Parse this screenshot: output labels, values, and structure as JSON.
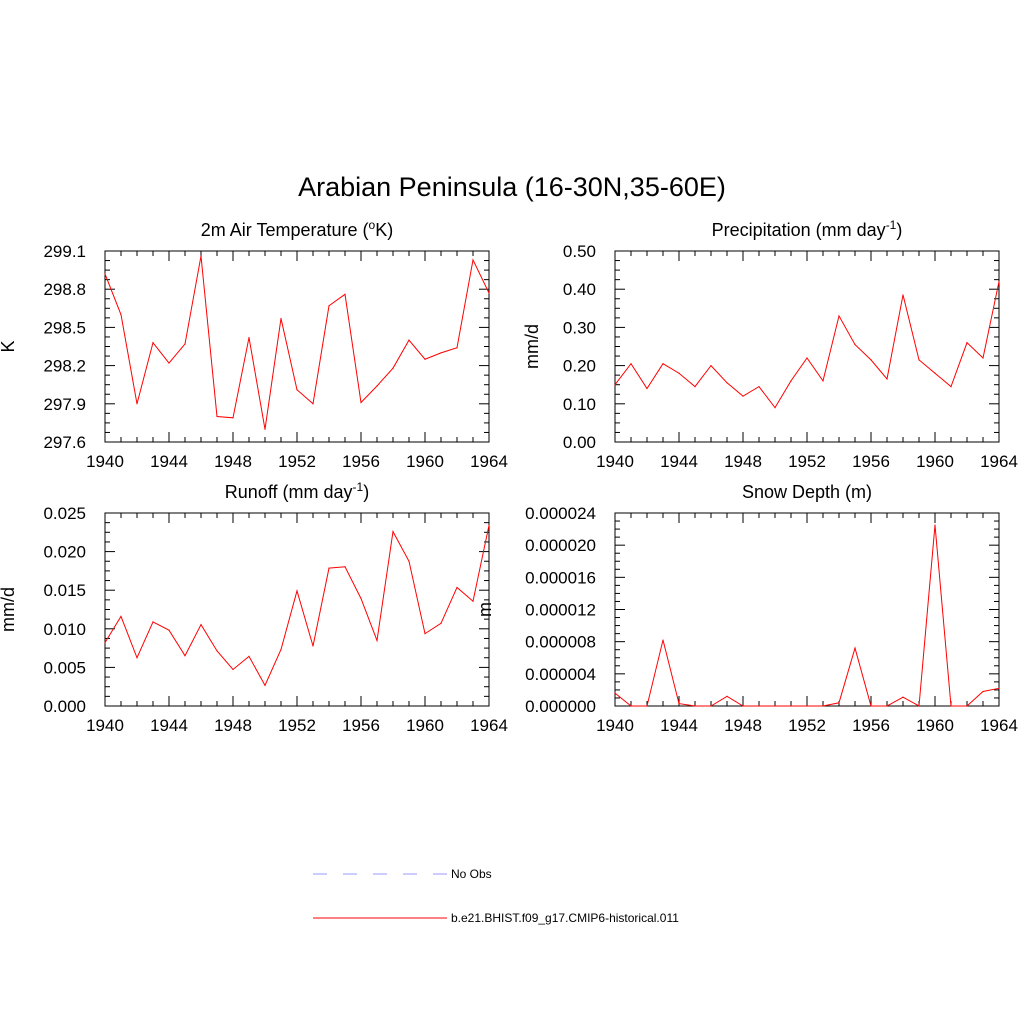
{
  "figure": {
    "title": "Arabian Peninsula (16-30N,35-60E)"
  },
  "chart_data": [
    {
      "type": "line",
      "title": "2m Air Temperature (",
      "title_sup": "o",
      "title_after": "K)",
      "ylabel": "K",
      "xlim": [
        1940,
        1964
      ],
      "ylim": [
        297.6,
        299.1
      ],
      "xticks": [
        "1940",
        "1944",
        "1948",
        "1952",
        "1956",
        "1960",
        "1964"
      ],
      "yticks": [
        "297.6",
        "297.9",
        "298.2",
        "298.5",
        "298.8",
        "299.1"
      ],
      "x": [
        1940,
        1941,
        1942,
        1943,
        1944,
        1945,
        1946,
        1947,
        1948,
        1949,
        1950,
        1951,
        1952,
        1953,
        1954,
        1955,
        1956,
        1957,
        1958,
        1959,
        1960,
        1961,
        1962,
        1963,
        1964
      ],
      "series": [
        {
          "values": [
            298.92,
            298.6,
            297.9,
            298.38,
            298.22,
            298.37,
            299.06,
            297.8,
            297.79,
            298.42,
            297.7,
            298.57,
            298.01,
            297.9,
            298.67,
            298.76,
            297.91,
            298.04,
            298.18,
            298.4,
            298.25,
            298.3,
            298.34,
            299.03,
            298.77
          ],
          "color": "#ff0000"
        }
      ]
    },
    {
      "type": "line",
      "title": "Precipitation (mm day",
      "title_sup": "-1",
      "title_after": ")",
      "ylabel": "mm/d",
      "xlim": [
        1940,
        1964
      ],
      "ylim": [
        0.0,
        0.5
      ],
      "xticks": [
        "1940",
        "1944",
        "1948",
        "1952",
        "1956",
        "1960",
        "1964"
      ],
      "yticks": [
        "0.00",
        "0.10",
        "0.20",
        "0.30",
        "0.40",
        "0.50"
      ],
      "x": [
        1940,
        1941,
        1942,
        1943,
        1944,
        1945,
        1946,
        1947,
        1948,
        1949,
        1950,
        1951,
        1952,
        1953,
        1954,
        1955,
        1956,
        1957,
        1958,
        1959,
        1960,
        1961,
        1962,
        1963,
        1964
      ],
      "series": [
        {
          "values": [
            0.15,
            0.205,
            0.14,
            0.205,
            0.18,
            0.145,
            0.2,
            0.155,
            0.12,
            0.145,
            0.09,
            0.16,
            0.22,
            0.16,
            0.33,
            0.255,
            0.215,
            0.165,
            0.385,
            0.215,
            0.18,
            0.145,
            0.26,
            0.22,
            0.42
          ],
          "color": "#ff0000"
        }
      ]
    },
    {
      "type": "line",
      "title": "Runoff (mm day",
      "title_sup": "-1",
      "title_after": ")",
      "ylabel": "mm/d",
      "xlim": [
        1940,
        1964
      ],
      "ylim": [
        0.0,
        0.028
      ],
      "xticks": [
        "1940",
        "1944",
        "1948",
        "1952",
        "1956",
        "1960",
        "1964"
      ],
      "yticks": [
        "0.000",
        "0.005",
        "0.010",
        "0.015",
        "0.020",
        "0.025"
      ],
      "x": [
        1940,
        1941,
        1942,
        1943,
        1944,
        1945,
        1946,
        1947,
        1948,
        1949,
        1950,
        1951,
        1952,
        1953,
        1954,
        1955,
        1956,
        1957,
        1958,
        1959,
        1960,
        1961,
        1962,
        1963,
        1964
      ],
      "series": [
        {
          "values": [
            0.0092,
            0.013,
            0.007,
            0.0122,
            0.011,
            0.0073,
            0.0118,
            0.008,
            0.0053,
            0.0072,
            0.003,
            0.0082,
            0.0167,
            0.0087,
            0.02,
            0.0202,
            0.0156,
            0.0095,
            0.0253,
            0.021,
            0.0105,
            0.012,
            0.0172,
            0.0152,
            0.0262
          ],
          "color": "#ff0000"
        }
      ]
    },
    {
      "type": "line",
      "title": "Snow Depth (m)",
      "title_sup": "",
      "title_after": "",
      "ylabel": "m",
      "xlim": [
        1940,
        1964
      ],
      "ylim": [
        0.0,
        2.4e-05
      ],
      "xticks": [
        "1940",
        "1944",
        "1948",
        "1952",
        "1956",
        "1960",
        "1964"
      ],
      "yticks": [
        "0.000000",
        "0.000004",
        "0.000008",
        "0.000012",
        "0.000016",
        "0.000020",
        "0.000024"
      ],
      "x": [
        1940,
        1941,
        1942,
        1943,
        1944,
        1945,
        1946,
        1947,
        1948,
        1949,
        1950,
        1951,
        1952,
        1953,
        1954,
        1955,
        1956,
        1957,
        1958,
        1959,
        1960,
        1961,
        1962,
        1963,
        1964
      ],
      "series": [
        {
          "values": [
            1.6e-06,
            0.0,
            0.0,
            8.2e-06,
            3e-07,
            0.0,
            0.0,
            1.2e-06,
            0.0,
            0.0,
            0.0,
            0.0,
            0.0,
            0.0,
            4e-07,
            7.2e-06,
            0.0,
            0.0,
            1.1e-06,
            0.0,
            2.25e-05,
            0.0,
            0.0,
            1.8e-06,
            2.2e-06
          ],
          "color": "#ff0000"
        }
      ]
    }
  ],
  "legend": {
    "items": [
      {
        "label": "No Obs",
        "color": "#9999ff",
        "dash": "dashed"
      },
      {
        "label": "b.e21.BHIST.f09_g17.CMIP6-historical.011",
        "color": "#ff0000",
        "dash": "solid"
      }
    ]
  }
}
